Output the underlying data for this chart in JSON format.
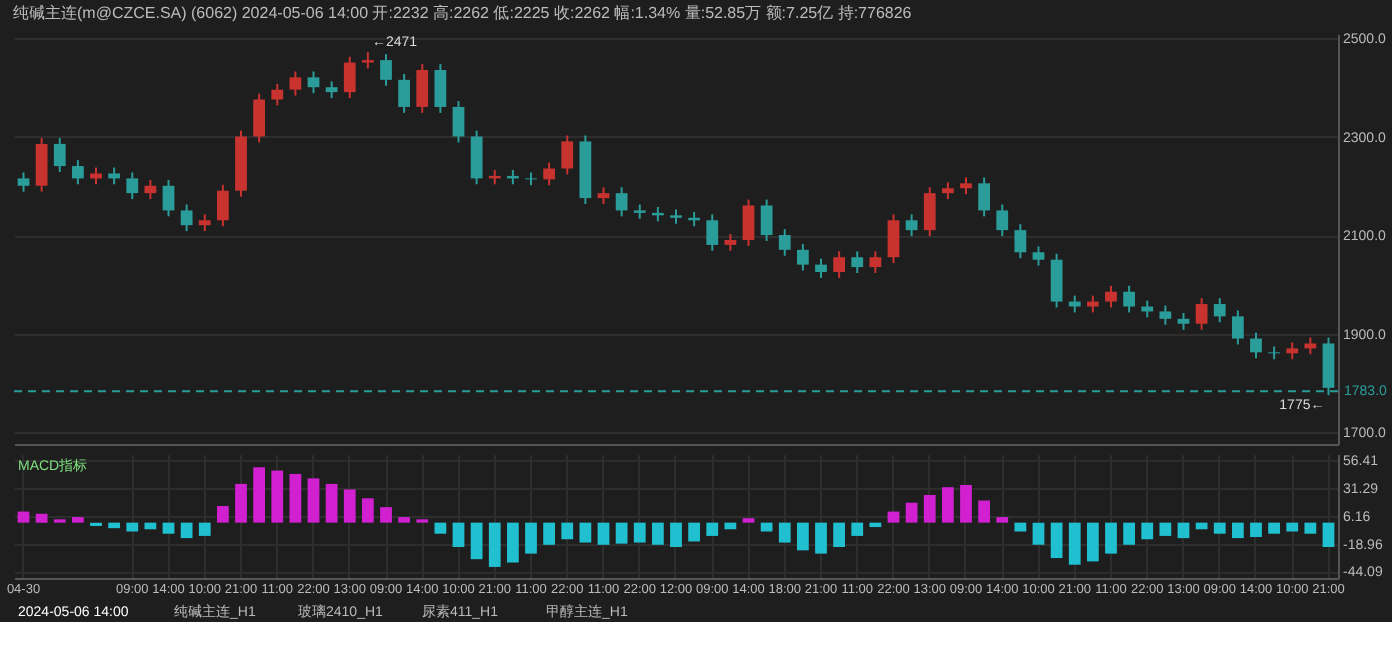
{
  "chart_data": [
    {
      "type": "candlestick",
      "title": "纯碱主连(m@CZCE.SA) (6062) 2024-05-06 14:00 开:2232 高:2262 低:2225 收:2262 幅:1.34% 量:52.85万 额:7.25亿 持:776826",
      "categories": [
        null,
        null,
        null,
        null,
        null,
        null,
        null,
        null,
        null,
        null,
        null,
        null,
        null,
        null,
        null,
        null,
        null,
        null,
        null,
        null,
        null,
        null,
        null,
        null,
        null,
        null,
        null,
        null,
        null,
        null,
        null,
        null,
        null,
        null,
        null,
        null,
        null,
        null,
        null,
        null,
        null,
        null,
        null,
        null,
        null,
        null,
        null,
        null,
        null,
        null,
        null,
        null,
        null,
        null,
        null,
        null,
        null,
        null,
        null,
        null,
        null,
        null,
        null,
        null,
        null,
        null,
        null,
        null,
        null,
        null,
        null,
        null,
        null
      ],
      "ohlc": [
        [
          2215,
          2227,
          2188,
          2200
        ],
        [
          2200,
          2297,
          2188,
          2285
        ],
        [
          2285,
          2297,
          2228,
          2240
        ],
        [
          2240,
          2252,
          2203,
          2215
        ],
        [
          2215,
          2237,
          2203,
          2225
        ],
        [
          2225,
          2237,
          2203,
          2215
        ],
        [
          2215,
          2227,
          2173,
          2185
        ],
        [
          2185,
          2212,
          2173,
          2200
        ],
        [
          2200,
          2212,
          2138,
          2150
        ],
        [
          2150,
          2162,
          2108,
          2120
        ],
        [
          2120,
          2142,
          2108,
          2130
        ],
        [
          2130,
          2202,
          2118,
          2190
        ],
        [
          2190,
          2312,
          2178,
          2300
        ],
        [
          2300,
          2387,
          2288,
          2375
        ],
        [
          2375,
          2407,
          2363,
          2395
        ],
        [
          2395,
          2432,
          2383,
          2420
        ],
        [
          2420,
          2432,
          2388,
          2400
        ],
        [
          2400,
          2412,
          2378,
          2390
        ],
        [
          2390,
          2462,
          2378,
          2450
        ],
        [
          2450,
          2471,
          2438,
          2455
        ],
        [
          2455,
          2467,
          2403,
          2415
        ],
        [
          2415,
          2427,
          2348,
          2360
        ],
        [
          2360,
          2447,
          2348,
          2435
        ],
        [
          2435,
          2447,
          2348,
          2360
        ],
        [
          2360,
          2372,
          2288,
          2300
        ],
        [
          2300,
          2312,
          2203,
          2215
        ],
        [
          2215,
          2232,
          2203,
          2220
        ],
        [
          2220,
          2232,
          2203,
          2215
        ],
        [
          2215,
          2227,
          2201,
          2213
        ],
        [
          2213,
          2247,
          2201,
          2235
        ],
        [
          2235,
          2302,
          2223,
          2290
        ],
        [
          2290,
          2302,
          2163,
          2175
        ],
        [
          2175,
          2197,
          2163,
          2185
        ],
        [
          2185,
          2197,
          2138,
          2150
        ],
        [
          2150,
          2162,
          2133,
          2145
        ],
        [
          2145,
          2157,
          2128,
          2140
        ],
        [
          2140,
          2152,
          2123,
          2135
        ],
        [
          2135,
          2147,
          2118,
          2130
        ],
        [
          2130,
          2142,
          2068,
          2080
        ],
        [
          2080,
          2102,
          2068,
          2090
        ],
        [
          2090,
          2172,
          2078,
          2160
        ],
        [
          2160,
          2172,
          2088,
          2100
        ],
        [
          2100,
          2112,
          2058,
          2070
        ],
        [
          2070,
          2082,
          2028,
          2040
        ],
        [
          2040,
          2052,
          2013,
          2025
        ],
        [
          2025,
          2067,
          2013,
          2055
        ],
        [
          2055,
          2067,
          2023,
          2035
        ],
        [
          2035,
          2067,
          2023,
          2055
        ],
        [
          2055,
          2142,
          2043,
          2130
        ],
        [
          2130,
          2142,
          2098,
          2110
        ],
        [
          2110,
          2197,
          2098,
          2185
        ],
        [
          2185,
          2207,
          2173,
          2195
        ],
        [
          2195,
          2217,
          2183,
          2205
        ],
        [
          2205,
          2217,
          2138,
          2150
        ],
        [
          2150,
          2162,
          2098,
          2110
        ],
        [
          2110,
          2122,
          2053,
          2065
        ],
        [
          2065,
          2077,
          2038,
          2050
        ],
        [
          2050,
          2062,
          1953,
          1965
        ],
        [
          1965,
          1977,
          1943,
          1955
        ],
        [
          1955,
          1977,
          1943,
          1965
        ],
        [
          1965,
          1997,
          1953,
          1985
        ],
        [
          1985,
          1997,
          1943,
          1955
        ],
        [
          1955,
          1967,
          1933,
          1945
        ],
        [
          1945,
          1957,
          1918,
          1930
        ],
        [
          1930,
          1942,
          1908,
          1920
        ],
        [
          1920,
          1972,
          1908,
          1960
        ],
        [
          1960,
          1972,
          1923,
          1935
        ],
        [
          1935,
          1947,
          1878,
          1890
        ],
        [
          1890,
          1902,
          1850,
          1862
        ],
        [
          1862,
          1874,
          1848,
          1860
        ],
        [
          1860,
          1882,
          1848,
          1870
        ],
        [
          1870,
          1892,
          1858,
          1880
        ],
        [
          1880,
          1892,
          1775,
          1790
        ]
      ],
      "colors": [
        "#2a9d9a",
        "#c8322f",
        "#2a9d9a",
        "#2a9d9a",
        "#c8322f",
        "#2a9d9a",
        "#2a9d9a",
        "#c8322f",
        "#2a9d9a",
        "#2a9d9a",
        "#c8322f",
        "#c8322f",
        "#c8322f",
        "#c8322f",
        "#c8322f",
        "#c8322f",
        "#2a9d9a",
        "#2a9d9a",
        "#c8322f",
        "#c8322f",
        "#2a9d9a",
        "#2a9d9a",
        "#c8322f",
        "#2a9d9a",
        "#2a9d9a",
        "#2a9d9a",
        "#c8322f",
        "#2a9d9a",
        "#2a9d9a",
        "#c8322f",
        "#c8322f",
        "#2a9d9a",
        "#c8322f",
        "#2a9d9a",
        "#2a9d9a",
        "#2a9d9a",
        "#2a9d9a",
        "#2a9d9a",
        "#2a9d9a",
        "#c8322f",
        "#c8322f",
        "#2a9d9a",
        "#2a9d9a",
        "#2a9d9a",
        "#2a9d9a",
        "#c8322f",
        "#2a9d9a",
        "#c8322f",
        "#c8322f",
        "#2a9d9a",
        "#c8322f",
        "#c8322f",
        "#c8322f",
        "#2a9d9a",
        "#2a9d9a",
        "#2a9d9a",
        "#2a9d9a",
        "#2a9d9a",
        "#2a9d9a",
        "#c8322f",
        "#c8322f",
        "#2a9d9a",
        "#2a9d9a",
        "#2a9d9a",
        "#2a9d9a",
        "#c8322f",
        "#2a9d9a",
        "#2a9d9a",
        "#2a9d9a",
        "#2a9d9a",
        "#c8322f",
        "#c8322f",
        "#2a9d9a"
      ],
      "ylim": [
        1676,
        2508
      ],
      "yticks": [
        {
          "value": 1700,
          "label": "1700.0"
        },
        {
          "value": 1900,
          "label": "1900.0"
        },
        {
          "value": 2100,
          "label": "2100.0"
        },
        {
          "value": 2300,
          "label": "2300.0"
        },
        {
          "value": 2500,
          "label": "2500.0"
        }
      ],
      "grid": true,
      "tick_labels": "y",
      "ref_lines": [
        {
          "axis": "y",
          "value": 1783,
          "label": "1783.0",
          "color": "#2a9d9a",
          "line_style": "dashed"
        }
      ],
      "annotations": [
        {
          "text": "←2471",
          "y": 2471
        },
        {
          "text": "1775←",
          "y": 1775
        }
      ]
    },
    {
      "type": "bar",
      "categories": [
        "04-30",
        null,
        null,
        null,
        null,
        null,
        "09:00",
        null,
        "14:00",
        null,
        "10:00",
        null,
        "21:00",
        null,
        "11:00",
        null,
        "22:00",
        null,
        "13:00",
        null,
        "09:00",
        null,
        "14:00",
        null,
        "10:00",
        null,
        "21:00",
        null,
        "11:00",
        null,
        "22:00",
        null,
        "11:00",
        null,
        "22:00",
        null,
        "12:00",
        null,
        "09:00",
        null,
        "14:00",
        null,
        "18:00",
        null,
        "21:00",
        null,
        "11:00",
        null,
        "22:00",
        null,
        "13:00",
        null,
        "09:00",
        null,
        "14:00",
        null,
        "10:00",
        null,
        "21:00",
        null,
        "11:00",
        null,
        "22:00",
        null,
        "13:00",
        null,
        "09:00",
        null,
        "14:00",
        null,
        "10:00",
        null,
        "21:00"
      ],
      "values": [
        10,
        8,
        3,
        5,
        -3,
        -5,
        -8,
        -6,
        -10,
        -14,
        -12,
        15,
        35,
        50,
        47,
        44,
        40,
        35,
        30,
        22,
        14,
        5,
        3,
        -10,
        -22,
        -33,
        -40,
        -36,
        -28,
        -20,
        -15,
        -18,
        -20,
        -19,
        -18,
        -20,
        -22,
        -17,
        -12,
        -6,
        4,
        -8,
        -18,
        -25,
        -28,
        -22,
        -12,
        -4,
        10,
        18,
        25,
        32,
        34,
        20,
        5,
        -8,
        -20,
        -32,
        -38,
        -35,
        -28,
        -20,
        -15,
        -12,
        -14,
        -6,
        -10,
        -14,
        -13,
        -10,
        -8,
        -10,
        -22
      ],
      "colors": [
        "#d020d0",
        "#d020d0",
        "#d020d0",
        "#d020d0",
        "#20c0d0",
        "#20c0d0",
        "#20c0d0",
        "#20c0d0",
        "#20c0d0",
        "#20c0d0",
        "#20c0d0",
        "#d020d0",
        "#d020d0",
        "#d020d0",
        "#d020d0",
        "#d020d0",
        "#d020d0",
        "#d020d0",
        "#d020d0",
        "#d020d0",
        "#d020d0",
        "#d020d0",
        "#d020d0",
        "#20c0d0",
        "#20c0d0",
        "#20c0d0",
        "#20c0d0",
        "#20c0d0",
        "#20c0d0",
        "#20c0d0",
        "#20c0d0",
        "#20c0d0",
        "#20c0d0",
        "#20c0d0",
        "#20c0d0",
        "#20c0d0",
        "#20c0d0",
        "#20c0d0",
        "#20c0d0",
        "#20c0d0",
        "#d020d0",
        "#20c0d0",
        "#20c0d0",
        "#20c0d0",
        "#20c0d0",
        "#20c0d0",
        "#20c0d0",
        "#20c0d0",
        "#d020d0",
        "#d020d0",
        "#d020d0",
        "#d020d0",
        "#d020d0",
        "#d020d0",
        "#d020d0",
        "#20c0d0",
        "#20c0d0",
        "#20c0d0",
        "#20c0d0",
        "#20c0d0",
        "#20c0d0",
        "#20c0d0",
        "#20c0d0",
        "#20c0d0",
        "#20c0d0",
        "#20c0d0",
        "#20c0d0",
        "#20c0d0",
        "#20c0d0",
        "#20c0d0",
        "#20c0d0",
        "#20c0d0",
        "#20c0d0"
      ],
      "ylim": [
        -50,
        62
      ],
      "yticks": [
        -44.09,
        -18.96,
        6.16,
        31.29,
        56.41
      ],
      "grid": true,
      "annotations": [
        "MACD指标",
        "2024-05-06 14:00",
        "纯碱主连_H1",
        "玻璃2410_H1",
        "尿素411_H1",
        "甲醇主连_H1"
      ]
    }
  ]
}
